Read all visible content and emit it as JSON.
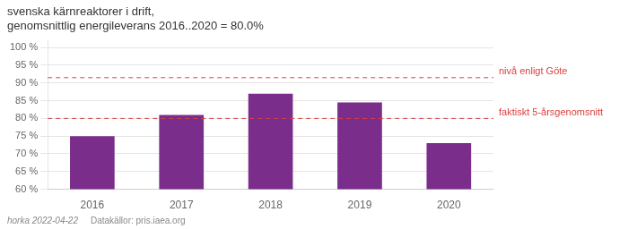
{
  "chart_data": {
    "type": "bar",
    "title": "svenska kärnreaktorer i drift,\ngenomsnittlig energileverans 2016..2020 = 80.0%",
    "categories": [
      "2016",
      "2017",
      "2018",
      "2019",
      "2020"
    ],
    "values": [
      75.0,
      81.0,
      87.0,
      84.5,
      73.0
    ],
    "color": "#7B2D8B",
    "ylim": [
      60,
      102
    ],
    "yticks": [
      {
        "value": 60,
        "label": "60 %"
      },
      {
        "value": 65,
        "label": "65 %"
      },
      {
        "value": 70,
        "label": "70 %"
      },
      {
        "value": 75,
        "label": "75 %"
      },
      {
        "value": 80,
        "label": "80 %"
      },
      {
        "value": 85,
        "label": "85 %"
      },
      {
        "value": 90,
        "label": "90 %"
      },
      {
        "value": 95,
        "label": "95 %"
      },
      {
        "value": 100,
        "label": "100 %"
      }
    ],
    "grid": true,
    "annotations": [
      {
        "y": 91.5,
        "text": "nivå enligt Göte",
        "color": "#D94040",
        "line_style": "dashed"
      },
      {
        "y": 80.0,
        "text": "faktiskt 5-årsgenomsnitt",
        "color": "#D94040",
        "line_style": "dashed"
      }
    ],
    "footer": [
      "horka 2022-04-22",
      "Datakällor: pris.iaea.org"
    ]
  }
}
